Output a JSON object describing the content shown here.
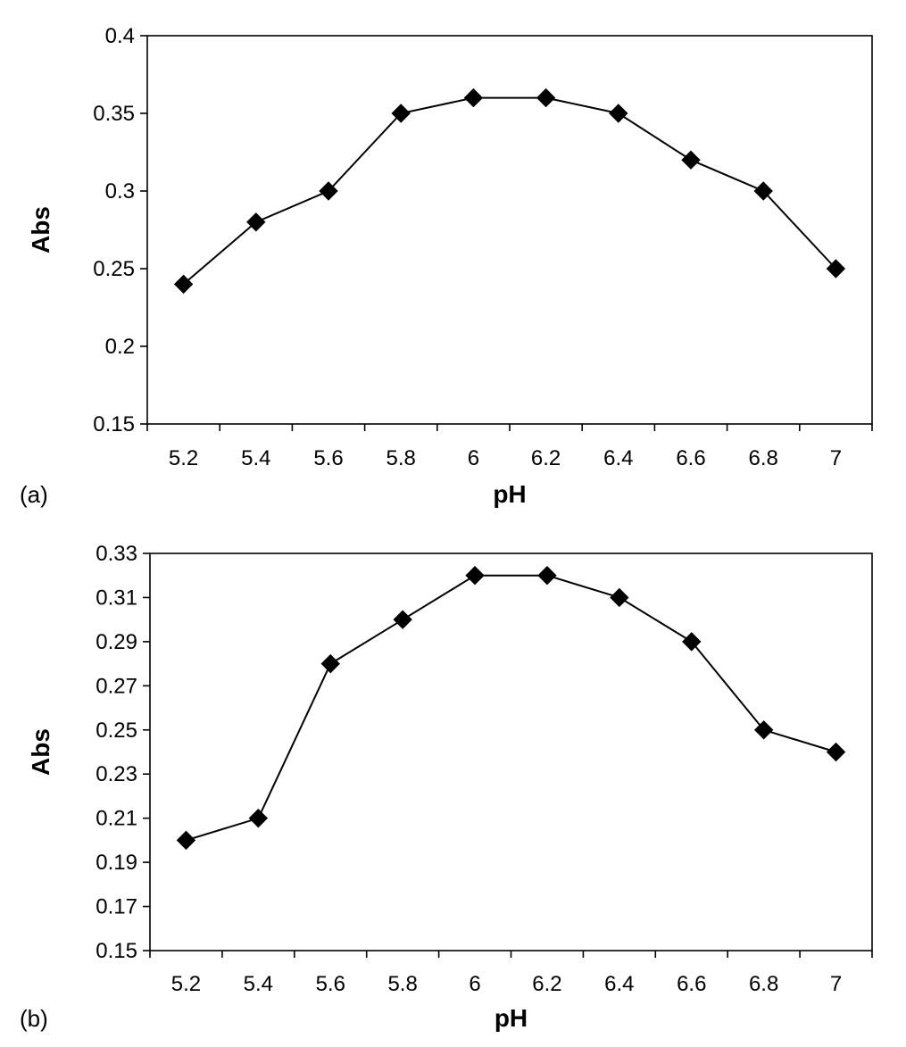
{
  "chart_data": [
    {
      "type": "line",
      "panel_label": "(a)",
      "xlabel": "pH",
      "ylabel": "Abs",
      "categories": [
        "5.2",
        "5.4",
        "5.6",
        "5.8",
        "6",
        "6.2",
        "6.4",
        "6.6",
        "6.8",
        "7"
      ],
      "y_ticks": [
        "0.15",
        "0.2",
        "0.25",
        "0.3",
        "0.35",
        "0.4"
      ],
      "ylim": [
        0.15,
        0.4
      ],
      "series": [
        {
          "values": [
            0.24,
            0.28,
            0.3,
            0.35,
            0.36,
            0.36,
            0.35,
            0.32,
            0.3,
            0.25
          ]
        }
      ],
      "marker": "diamond",
      "grid": false,
      "line_color": "#000000"
    },
    {
      "type": "line",
      "panel_label": "(b)",
      "xlabel": "pH",
      "ylabel": "Abs",
      "categories": [
        "5.2",
        "5.4",
        "5.6",
        "5.8",
        "6",
        "6.2",
        "6.4",
        "6.6",
        "6.8",
        "7"
      ],
      "y_ticks": [
        "0.15",
        "0.17",
        "0.19",
        "0.21",
        "0.23",
        "0.25",
        "0.27",
        "0.29",
        "0.31",
        "0.33"
      ],
      "ylim": [
        0.15,
        0.33
      ],
      "series": [
        {
          "values": [
            0.2,
            0.21,
            0.28,
            0.3,
            0.32,
            0.32,
            0.31,
            0.29,
            0.25,
            0.24
          ]
        }
      ],
      "marker": "diamond",
      "grid": false,
      "line_color": "#000000"
    }
  ]
}
